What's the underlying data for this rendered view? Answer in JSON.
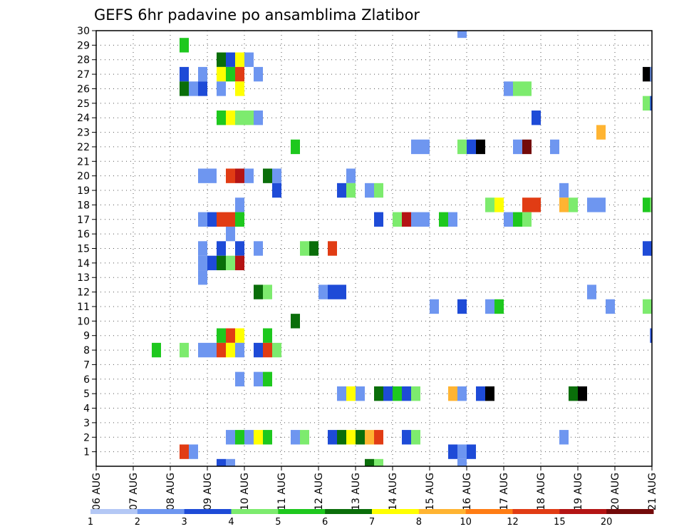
{
  "chart_data": {
    "type": "heatmap",
    "title": "GEFS 6hr padavine po ansamblima Zlatibor",
    "xlabel": "",
    "ylabel": "",
    "x_tick_labels": [
      "06 AUG",
      "07 AUG",
      "08 AUG",
      "09 AUG",
      "10 AUG",
      "11 AUG",
      "12 AUG",
      "13 AUG",
      "14 AUG",
      "15 AUG",
      "16 AUG",
      "17 AUG",
      "18 AUG",
      "19 AUG",
      "20 AUG",
      "21 AUG"
    ],
    "x_unit": "6-hour steps (4 per day)",
    "xlim": [
      0,
      60
    ],
    "ylim": [
      0,
      30
    ],
    "y_tick_labels": [
      "1",
      "2",
      "3",
      "4",
      "5",
      "6",
      "7",
      "8",
      "9",
      "10",
      "11",
      "12",
      "13",
      "14",
      "15",
      "16",
      "17",
      "18",
      "19",
      "20",
      "21",
      "22",
      "23",
      "24",
      "25",
      "26",
      "27",
      "28",
      "29",
      "30"
    ],
    "grid": true,
    "legend_position": "bottom",
    "legend": {
      "labels": [
        "1",
        "2",
        "3",
        "4",
        "5",
        "6",
        "7",
        "8",
        "10",
        "12",
        "15",
        "20"
      ],
      "colors": [
        "#b4c8f5",
        "#6e96f0",
        "#1e4bd7",
        "#7deb6e",
        "#1ec81e",
        "#0a6e0a",
        "#ffff00",
        "#ffb432",
        "#ff7d14",
        "#e13c14",
        "#b41414",
        "#730a0a"
      ]
    },
    "cells": [
      [
        30,
        39.5,
        1
      ],
      [
        29,
        9.5,
        4
      ],
      [
        28,
        13.5,
        5
      ],
      [
        28,
        14.5,
        2
      ],
      [
        28,
        15.5,
        6
      ],
      [
        28,
        16.5,
        1
      ],
      [
        27,
        9.5,
        2
      ],
      [
        27,
        11.5,
        1
      ],
      [
        27,
        13.5,
        6
      ],
      [
        27,
        14.5,
        4
      ],
      [
        27,
        15.5,
        9
      ],
      [
        27,
        17.5,
        1
      ],
      [
        27,
        59.5,
        12
      ],
      [
        27,
        60.3,
        1
      ],
      [
        26,
        9.5,
        5
      ],
      [
        26,
        10.5,
        1
      ],
      [
        26,
        11.5,
        2
      ],
      [
        26,
        13.5,
        1
      ],
      [
        26,
        15.5,
        6
      ],
      [
        26,
        44.5,
        1
      ],
      [
        26,
        45.5,
        3
      ],
      [
        26,
        46.5,
        3
      ],
      [
        25,
        59.5,
        3
      ],
      [
        25,
        60.3,
        2
      ],
      [
        24,
        13.5,
        4
      ],
      [
        24,
        14.5,
        6
      ],
      [
        24,
        15.5,
        3
      ],
      [
        24,
        16.5,
        3
      ],
      [
        24,
        17.5,
        1
      ],
      [
        24,
        47.5,
        2
      ],
      [
        23,
        54.5,
        7
      ],
      [
        22,
        21.5,
        4
      ],
      [
        22,
        34.5,
        1
      ],
      [
        22,
        35.5,
        1
      ],
      [
        22,
        39.5,
        3
      ],
      [
        22,
        40.5,
        2
      ],
      [
        22,
        41.5,
        12
      ],
      [
        22,
        45.5,
        1
      ],
      [
        22,
        46.5,
        11
      ],
      [
        22,
        49.5,
        1
      ],
      [
        20,
        11.5,
        1
      ],
      [
        20,
        12.5,
        1
      ],
      [
        20,
        14.5,
        9
      ],
      [
        20,
        15.5,
        10
      ],
      [
        20,
        16.5,
        1
      ],
      [
        20,
        18.5,
        5
      ],
      [
        20,
        19.5,
        1
      ],
      [
        20,
        27.5,
        1
      ],
      [
        19,
        19.5,
        2
      ],
      [
        19,
        26.5,
        2
      ],
      [
        19,
        27.5,
        3
      ],
      [
        19,
        29.5,
        1
      ],
      [
        19,
        30.5,
        3
      ],
      [
        19,
        50.5,
        1
      ],
      [
        18,
        15.5,
        1
      ],
      [
        18,
        42.5,
        3
      ],
      [
        18,
        43.5,
        6
      ],
      [
        18,
        46.5,
        9
      ],
      [
        18,
        47.5,
        9
      ],
      [
        18,
        50.5,
        7
      ],
      [
        18,
        51.5,
        3
      ],
      [
        18,
        53.5,
        1
      ],
      [
        18,
        54.5,
        1
      ],
      [
        18,
        59.5,
        4
      ],
      [
        18,
        60.3,
        3
      ],
      [
        17,
        11.5,
        1
      ],
      [
        17,
        12.5,
        2
      ],
      [
        17,
        13.5,
        9
      ],
      [
        17,
        14.5,
        9
      ],
      [
        17,
        15.5,
        4
      ],
      [
        17,
        30.5,
        2
      ],
      [
        17,
        32.5,
        3
      ],
      [
        17,
        33.5,
        10
      ],
      [
        17,
        34.5,
        1
      ],
      [
        17,
        35.5,
        1
      ],
      [
        17,
        37.5,
        4
      ],
      [
        17,
        38.5,
        1
      ],
      [
        17,
        44.5,
        1
      ],
      [
        17,
        45.5,
        4
      ],
      [
        17,
        46.5,
        3
      ],
      [
        16,
        14.5,
        1
      ],
      [
        15,
        11.5,
        1
      ],
      [
        15,
        13.5,
        2
      ],
      [
        15,
        15.5,
        2
      ],
      [
        15,
        17.5,
        1
      ],
      [
        15,
        22.5,
        3
      ],
      [
        15,
        23.5,
        5
      ],
      [
        15,
        25.5,
        9
      ],
      [
        15,
        59.5,
        2
      ],
      [
        15,
        60.3,
        2
      ],
      [
        14,
        11.5,
        1
      ],
      [
        14,
        12.5,
        2
      ],
      [
        14,
        13.5,
        5
      ],
      [
        14,
        14.5,
        3
      ],
      [
        14,
        15.5,
        10
      ],
      [
        13,
        11.5,
        1
      ],
      [
        12,
        17.5,
        5
      ],
      [
        12,
        18.5,
        3
      ],
      [
        12,
        24.5,
        1
      ],
      [
        12,
        25.5,
        2
      ],
      [
        12,
        26.5,
        2
      ],
      [
        12,
        53.5,
        1
      ],
      [
        11,
        36.5,
        1
      ],
      [
        11,
        39.5,
        2
      ],
      [
        11,
        42.5,
        1
      ],
      [
        11,
        43.5,
        4
      ],
      [
        11,
        55.5,
        1
      ],
      [
        11,
        59.5,
        3
      ],
      [
        10,
        21.5,
        5
      ],
      [
        9,
        13.5,
        4
      ],
      [
        9,
        14.5,
        9
      ],
      [
        9,
        15.5,
        6
      ],
      [
        9,
        18.5,
        4
      ],
      [
        9,
        60.3,
        2
      ],
      [
        8,
        6.5,
        4
      ],
      [
        8,
        9.5,
        3
      ],
      [
        8,
        11.5,
        1
      ],
      [
        8,
        12.5,
        1
      ],
      [
        8,
        13.5,
        9
      ],
      [
        8,
        14.5,
        6
      ],
      [
        8,
        15.5,
        1
      ],
      [
        8,
        17.5,
        2
      ],
      [
        8,
        18.5,
        9
      ],
      [
        8,
        19.5,
        3
      ],
      [
        6,
        15.5,
        1
      ],
      [
        6,
        17.5,
        1
      ],
      [
        6,
        18.5,
        4
      ],
      [
        5,
        26.5,
        1
      ],
      [
        5,
        27.5,
        6
      ],
      [
        5,
        28.5,
        1
      ],
      [
        5,
        30.5,
        5
      ],
      [
        5,
        31.5,
        2
      ],
      [
        5,
        32.5,
        4
      ],
      [
        5,
        33.5,
        2
      ],
      [
        5,
        34.5,
        3
      ],
      [
        5,
        38.5,
        7
      ],
      [
        5,
        39.5,
        1
      ],
      [
        5,
        41.5,
        2
      ],
      [
        5,
        42.5,
        12
      ],
      [
        5,
        51.5,
        5
      ],
      [
        5,
        52.5,
        12
      ],
      [
        2,
        14.5,
        1
      ],
      [
        2,
        15.5,
        4
      ],
      [
        2,
        16.5,
        1
      ],
      [
        2,
        17.5,
        6
      ],
      [
        2,
        18.5,
        4
      ],
      [
        2,
        21.5,
        1
      ],
      [
        2,
        22.5,
        3
      ],
      [
        2,
        25.5,
        2
      ],
      [
        2,
        26.5,
        5
      ],
      [
        2,
        27.5,
        6
      ],
      [
        2,
        28.5,
        5
      ],
      [
        2,
        29.5,
        7
      ],
      [
        2,
        30.5,
        9
      ],
      [
        2,
        33.5,
        2
      ],
      [
        2,
        34.5,
        3
      ],
      [
        2,
        50.5,
        1
      ],
      [
        1,
        9.5,
        9
      ],
      [
        1,
        10.5,
        1
      ],
      [
        1,
        38.5,
        2
      ],
      [
        1,
        39.5,
        1
      ],
      [
        1,
        40.5,
        2
      ],
      [
        0,
        13.5,
        2
      ],
      [
        0,
        14.5,
        1
      ],
      [
        0,
        29.5,
        5
      ],
      [
        0,
        30.5,
        3
      ],
      [
        0,
        39.5,
        1
      ]
    ]
  }
}
